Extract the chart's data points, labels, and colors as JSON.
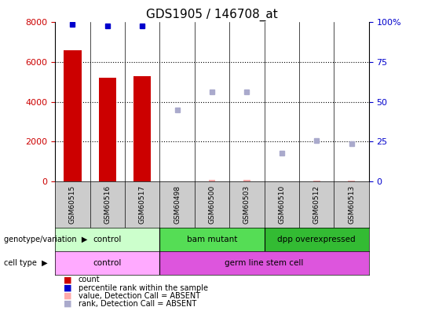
{
  "title": "GDS1905 / 146708_at",
  "samples": [
    "GSM60515",
    "GSM60516",
    "GSM60517",
    "GSM60498",
    "GSM60500",
    "GSM60503",
    "GSM60510",
    "GSM60512",
    "GSM60513"
  ],
  "count_values": [
    6600,
    5200,
    5300,
    null,
    null,
    null,
    null,
    null,
    null
  ],
  "count_absent_values": [
    null,
    null,
    null,
    null,
    80,
    80,
    null,
    50,
    30
  ],
  "percentile_rank_values": [
    7900,
    7800,
    7800,
    null,
    null,
    null,
    null,
    null,
    null
  ],
  "rank_absent_values": [
    null,
    null,
    null,
    3600,
    4500,
    4500,
    1400,
    2050,
    1900
  ],
  "ylim_left": [
    0,
    8000
  ],
  "yticks_left": [
    0,
    2000,
    4000,
    6000,
    8000
  ],
  "ytick_labels_left": [
    "0",
    "2000",
    "4000",
    "6000",
    "8000"
  ],
  "yticks_right_pos": [
    0,
    2000,
    4000,
    6000,
    8000
  ],
  "ytick_labels_right": [
    "0",
    "25",
    "50",
    "75",
    "100%"
  ],
  "bar_color": "#cc0000",
  "bar_absent_color": "#ffaaaa",
  "rank_color": "#0000cc",
  "rank_absent_color": "#aaaacc",
  "title_fontsize": 11,
  "axis_tick_color_left": "#cc0000",
  "axis_tick_color_right": "#0000cc",
  "grid_color": "#000000",
  "genotype_groups": [
    {
      "label": "control",
      "start": 0,
      "end": 3,
      "color": "#ccffcc"
    },
    {
      "label": "bam mutant",
      "start": 3,
      "end": 6,
      "color": "#55dd55"
    },
    {
      "label": "dpp overexpressed",
      "start": 6,
      "end": 9,
      "color": "#33bb33"
    }
  ],
  "cell_type_groups": [
    {
      "label": "control",
      "start": 0,
      "end": 3,
      "color": "#ffaaff"
    },
    {
      "label": "germ line stem cell",
      "start": 3,
      "end": 9,
      "color": "#dd55dd"
    }
  ],
  "legend_items": [
    {
      "label": "count",
      "color": "#cc0000"
    },
    {
      "label": "percentile rank within the sample",
      "color": "#0000cc"
    },
    {
      "label": "value, Detection Call = ABSENT",
      "color": "#ffaaaa"
    },
    {
      "label": "rank, Detection Call = ABSENT",
      "color": "#aaaacc"
    }
  ]
}
